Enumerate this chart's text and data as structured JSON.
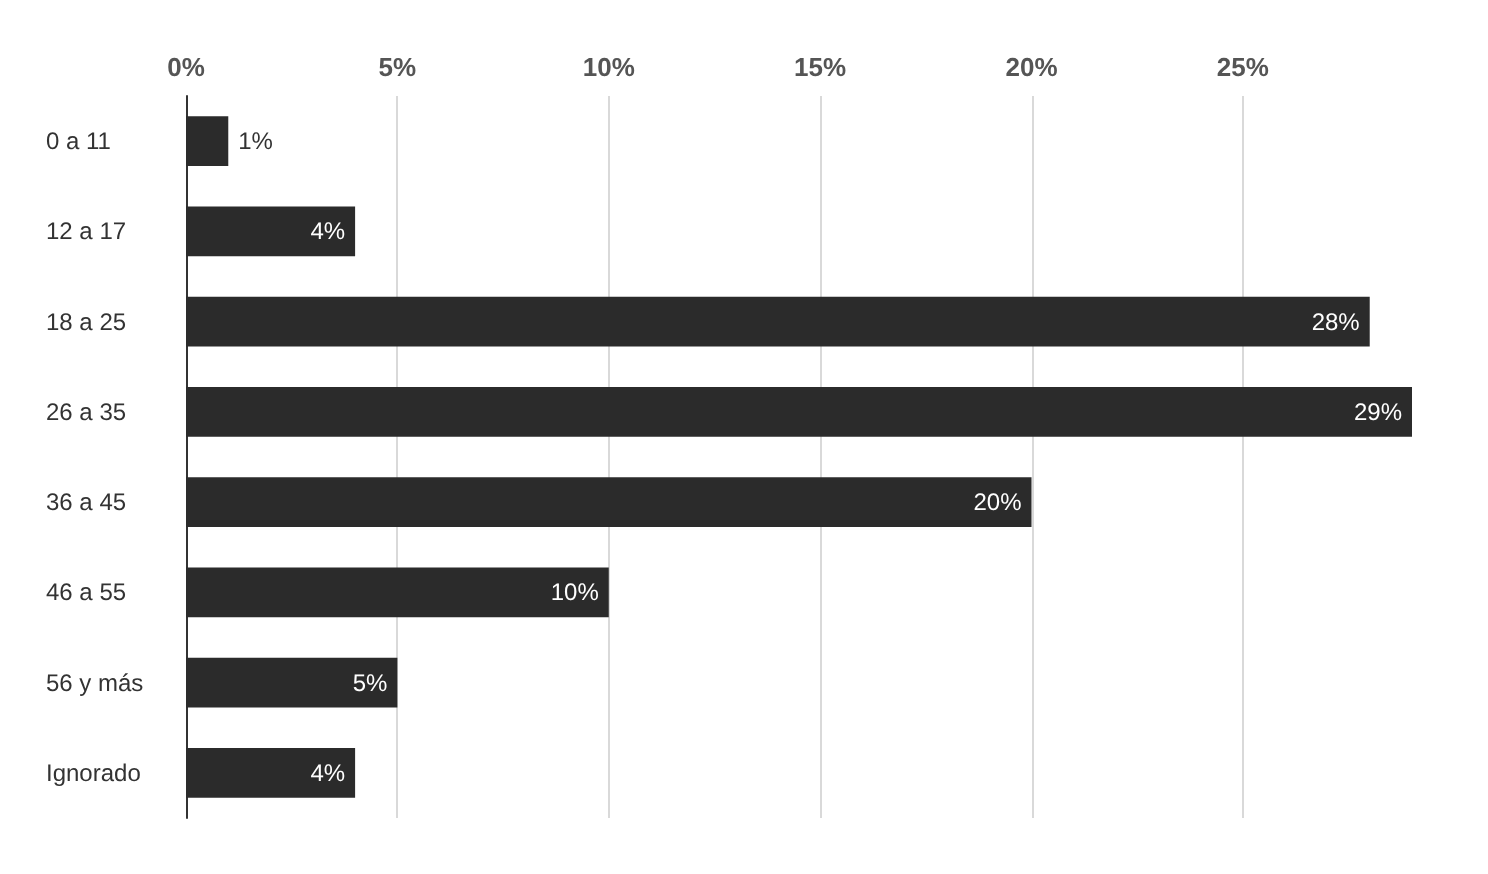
{
  "chart_data": {
    "type": "bar",
    "orientation": "horizontal",
    "categories": [
      "0 a 11",
      "12 a 17",
      "18 a 25",
      "26 a 35",
      "36 a 45",
      "46 a 55",
      "56 y más",
      "Ignorado"
    ],
    "values": [
      1,
      4,
      28,
      29,
      20,
      10,
      5,
      4
    ],
    "value_labels": [
      "1%",
      "4%",
      "28%",
      "29%",
      "20%",
      "10%",
      "5%",
      "4%"
    ],
    "color": "#2b2b2b",
    "xlim": [
      0,
      29
    ],
    "xticks": [
      {
        "value": 0,
        "label": "0%"
      },
      {
        "value": 5,
        "label": "5%"
      },
      {
        "value": 10,
        "label": "10%"
      },
      {
        "value": 15,
        "label": "15%"
      },
      {
        "value": 20,
        "label": "20%"
      },
      {
        "value": 25,
        "label": "25%"
      }
    ],
    "grid": "x"
  }
}
